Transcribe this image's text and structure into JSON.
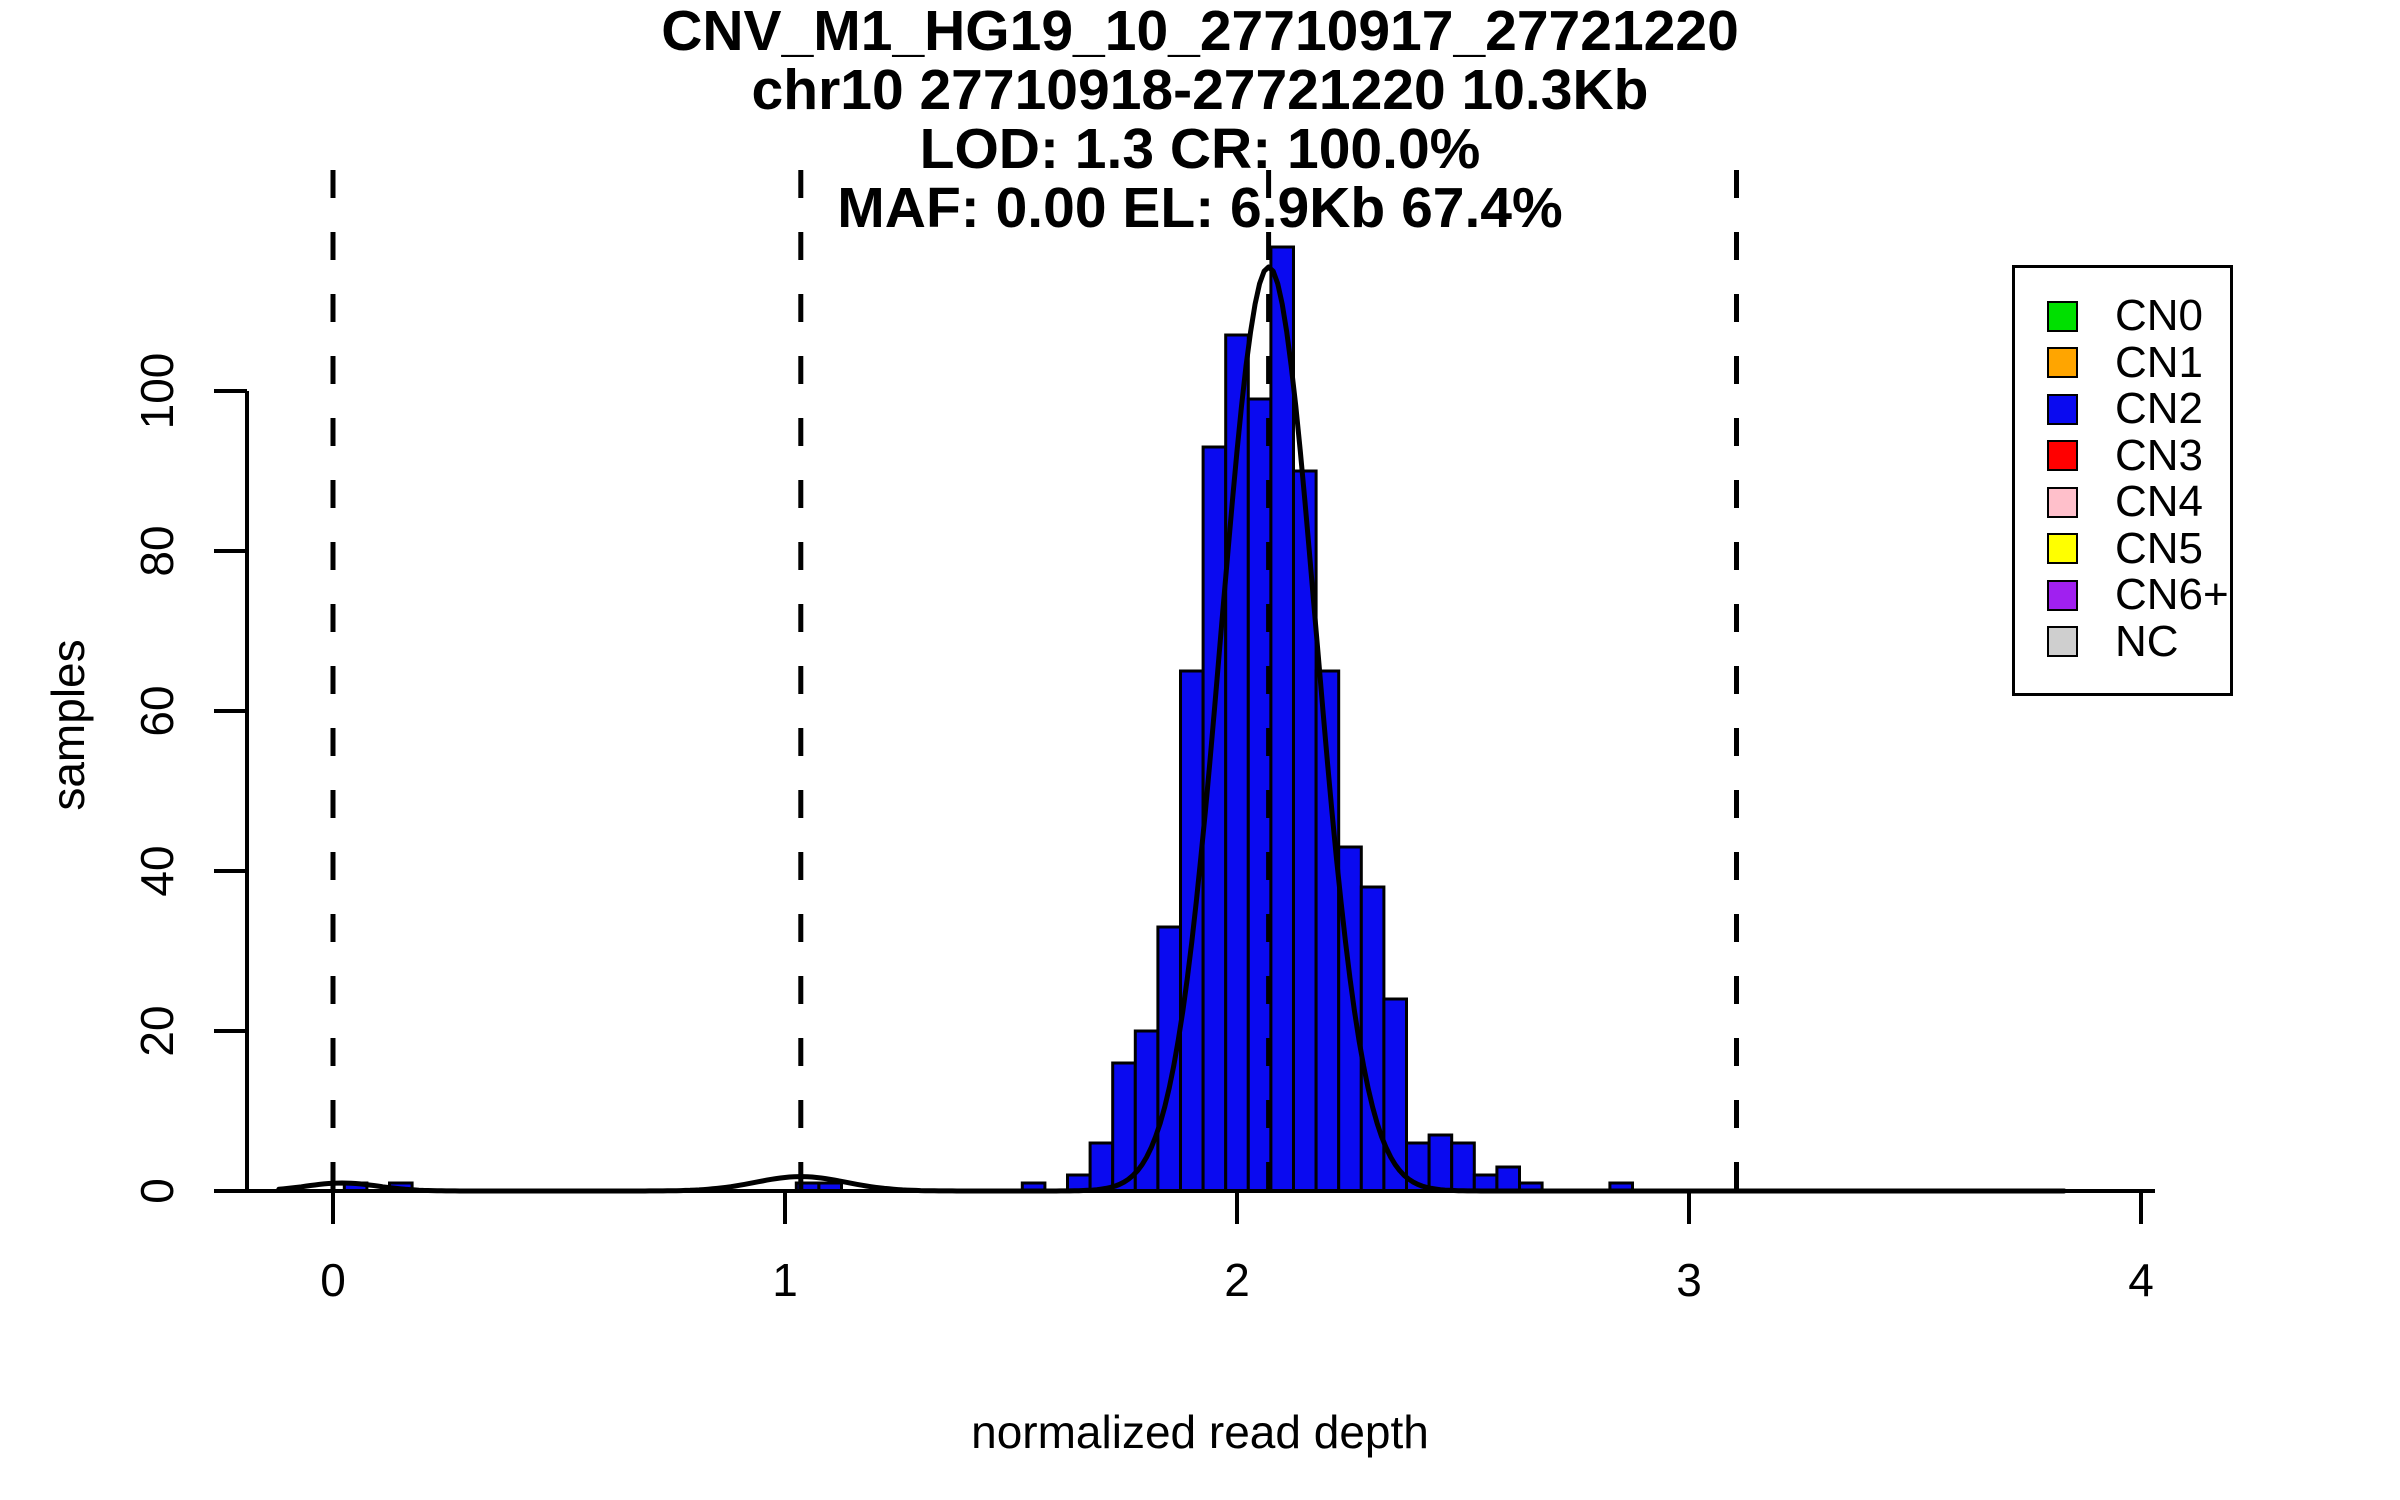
{
  "figure": {
    "title_lines": [
      "CNV_M1_HG19_10_27710917_27721220",
      "chr10 27710918-27721220 10.3Kb",
      "LOD: 1.3 CR: 100.0%",
      "MAF: 0.00 EL: 6.9Kb 67.4%"
    ],
    "x_axis": {
      "label": "normalized read depth",
      "ticks": [
        0,
        1,
        2,
        3,
        4
      ]
    },
    "y_axis": {
      "label": "samples",
      "ticks": [
        0,
        20,
        40,
        60,
        80,
        100
      ]
    }
  },
  "legend": {
    "entries": [
      {
        "label": "CN0",
        "color": "#00E000"
      },
      {
        "label": "CN1",
        "color": "#FFA500"
      },
      {
        "label": "CN2",
        "color": "#0A0AF0"
      },
      {
        "label": "CN3",
        "color": "#FF0000"
      },
      {
        "label": "CN4",
        "color": "#FFC0CB"
      },
      {
        "label": "CN5",
        "color": "#FFFF00"
      },
      {
        "label": "CN6+",
        "color": "#A020F0"
      },
      {
        "label": "NC",
        "color": "#CFCFCF"
      }
    ]
  },
  "colors": {
    "background": "#FFFFFF",
    "bar_fill": "#0A0AF0",
    "bar_stroke": "#000000",
    "curve": "#000000",
    "dashed_line": "#000000",
    "axis": "#000000"
  },
  "chart_data": {
    "type": "bar",
    "subtype": "histogram",
    "title": "CNV_M1_HG19_10_27710917_27721220",
    "subtitle": "chr10 27710918-27721220 10.3Kb",
    "stats_lines": [
      "LOD: 1.3 CR: 100.0%",
      "MAF: 0.00 EL: 6.9Kb 67.4%"
    ],
    "annotations": {
      "region": "chr10 27710918-27721220",
      "size": "10.3Kb",
      "LOD": "1.3",
      "CR": "100.0%",
      "MAF": "0.00",
      "EL": "6.9Kb",
      "EL_pct": "67.4%"
    },
    "xlabel": "normalized read depth",
    "ylabel": "samples",
    "xlim": [
      -0.19,
      4.03
    ],
    "ylim": [
      0,
      129
    ],
    "grid": false,
    "legend_position": "top-right",
    "bin_width": 0.05,
    "bins": [
      {
        "x0": 0.025,
        "count": 1
      },
      {
        "x0": 0.125,
        "count": 1
      },
      {
        "x0": 1.025,
        "count": 1
      },
      {
        "x0": 1.075,
        "count": 1
      },
      {
        "x0": 1.525,
        "count": 1
      },
      {
        "x0": 1.625,
        "count": 2
      },
      {
        "x0": 1.675,
        "count": 6
      },
      {
        "x0": 1.725,
        "count": 16
      },
      {
        "x0": 1.775,
        "count": 20
      },
      {
        "x0": 1.825,
        "count": 33
      },
      {
        "x0": 1.875,
        "count": 65
      },
      {
        "x0": 1.925,
        "count": 93
      },
      {
        "x0": 1.975,
        "count": 107
      },
      {
        "x0": 2.025,
        "count": 99
      },
      {
        "x0": 2.075,
        "count": 118
      },
      {
        "x0": 2.125,
        "count": 90
      },
      {
        "x0": 2.175,
        "count": 65
      },
      {
        "x0": 2.225,
        "count": 43
      },
      {
        "x0": 2.275,
        "count": 38
      },
      {
        "x0": 2.325,
        "count": 24
      },
      {
        "x0": 2.375,
        "count": 6
      },
      {
        "x0": 2.425,
        "count": 7
      },
      {
        "x0": 2.475,
        "count": 6
      },
      {
        "x0": 2.525,
        "count": 2
      },
      {
        "x0": 2.575,
        "count": 3
      },
      {
        "x0": 2.625,
        "count": 1
      },
      {
        "x0": 2.825,
        "count": 1
      }
    ],
    "dashed_vlines_x": [
      0,
      1.035,
      2.07,
      3.105
    ],
    "fit_curve": {
      "type": "gaussian-mixture",
      "x_range": [
        -0.12,
        3.83
      ],
      "components": [
        {
          "mean": 2.07,
          "sd": 0.105,
          "peak": 115.5
        },
        {
          "mean": 1.035,
          "sd": 0.1,
          "peak": 1.8
        },
        {
          "mean": 0.02,
          "sd": 0.08,
          "peak": 1.0
        }
      ]
    }
  }
}
